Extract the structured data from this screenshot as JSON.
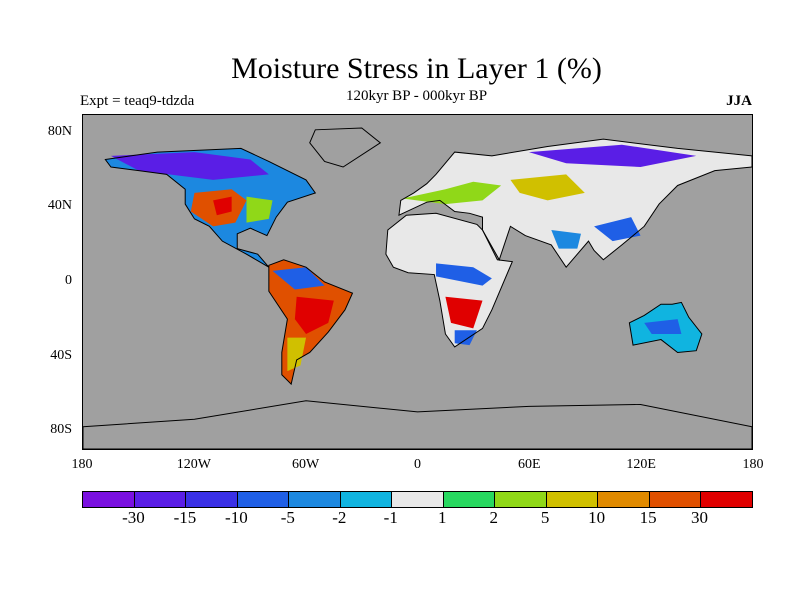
{
  "title": "Moisture Stress in Layer 1 (%)",
  "subtitle": "120kyr BP - 000kyr BP",
  "experiment": "Expt = teaq9-tdzda",
  "season": "JJA",
  "map": {
    "projection": "equirectangular",
    "background_color": "#a0a0a0",
    "lat_labels": [
      "80N",
      "40N",
      "0",
      "40S",
      "80S"
    ],
    "lat_values": [
      80,
      40,
      0,
      -40,
      -80
    ],
    "lon_labels": [
      "180",
      "120W",
      "60W",
      "0",
      "60E",
      "120E",
      "180"
    ],
    "lon_values": [
      -180,
      -120,
      -60,
      0,
      60,
      120,
      180
    ]
  },
  "colorbar": {
    "labels": [
      "-30",
      "-15",
      "-10",
      "-5",
      "-2",
      "-1",
      "1",
      "2",
      "5",
      "10",
      "15",
      "30"
    ],
    "colors": [
      "#7a10e0",
      "#5a1ee6",
      "#3a30e6",
      "#1f5fe6",
      "#1c88e0",
      "#10b4e0",
      "#e8e8e8",
      "#28d860",
      "#90d818",
      "#d0c000",
      "#e08a00",
      "#e05000",
      "#e00000"
    ]
  }
}
